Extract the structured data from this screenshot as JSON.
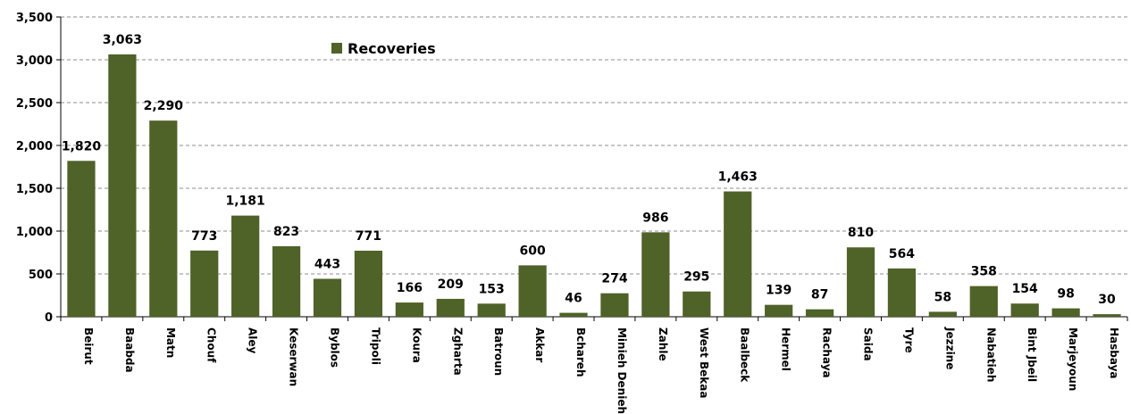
{
  "chart_data": {
    "type": "bar",
    "title": "",
    "xlabel": "",
    "ylabel": "",
    "ylim": [
      0,
      3500
    ],
    "yticks": [
      0,
      500,
      1000,
      1500,
      2000,
      2500,
      3000,
      3500
    ],
    "ytick_labels": [
      "0",
      "500",
      "1,000",
      "1,500",
      "2,000",
      "2,500",
      "3,000",
      "3,500"
    ],
    "grid": true,
    "legend_position": "top-center",
    "categories": [
      "Beirut",
      "Baabda",
      "Matn",
      "Chouf",
      "Aley",
      "Keserwan",
      "Byblos",
      "Tripoli",
      "Koura",
      "Zgharta",
      "Batroun",
      "Akkar",
      "Bchareh",
      "Minieh Denieh",
      "Zahle",
      "West Bekaa",
      "Baalbeck",
      "Hermel",
      "Rachaya",
      "Saida",
      "Tyre",
      "Jezzine",
      "Nabatieh",
      "Bint Jbeil",
      "Marjeyoun",
      "Hasbaya"
    ],
    "series": [
      {
        "name": "Recoveries",
        "color": "#4f6228",
        "values": [
          1820,
          3063,
          2290,
          773,
          1181,
          823,
          443,
          771,
          166,
          209,
          153,
          600,
          46,
          274,
          986,
          295,
          1463,
          139,
          87,
          810,
          564,
          58,
          358,
          154,
          98,
          30
        ],
        "labels": [
          "1,820",
          "3,063",
          "2,290",
          "773",
          "1,181",
          "823",
          "443",
          "771",
          "166",
          "209",
          "153",
          "600",
          "46",
          "274",
          "986",
          "295",
          "1,463",
          "139",
          "87",
          "810",
          "564",
          "58",
          "358",
          "154",
          "98",
          "30"
        ]
      }
    ]
  }
}
